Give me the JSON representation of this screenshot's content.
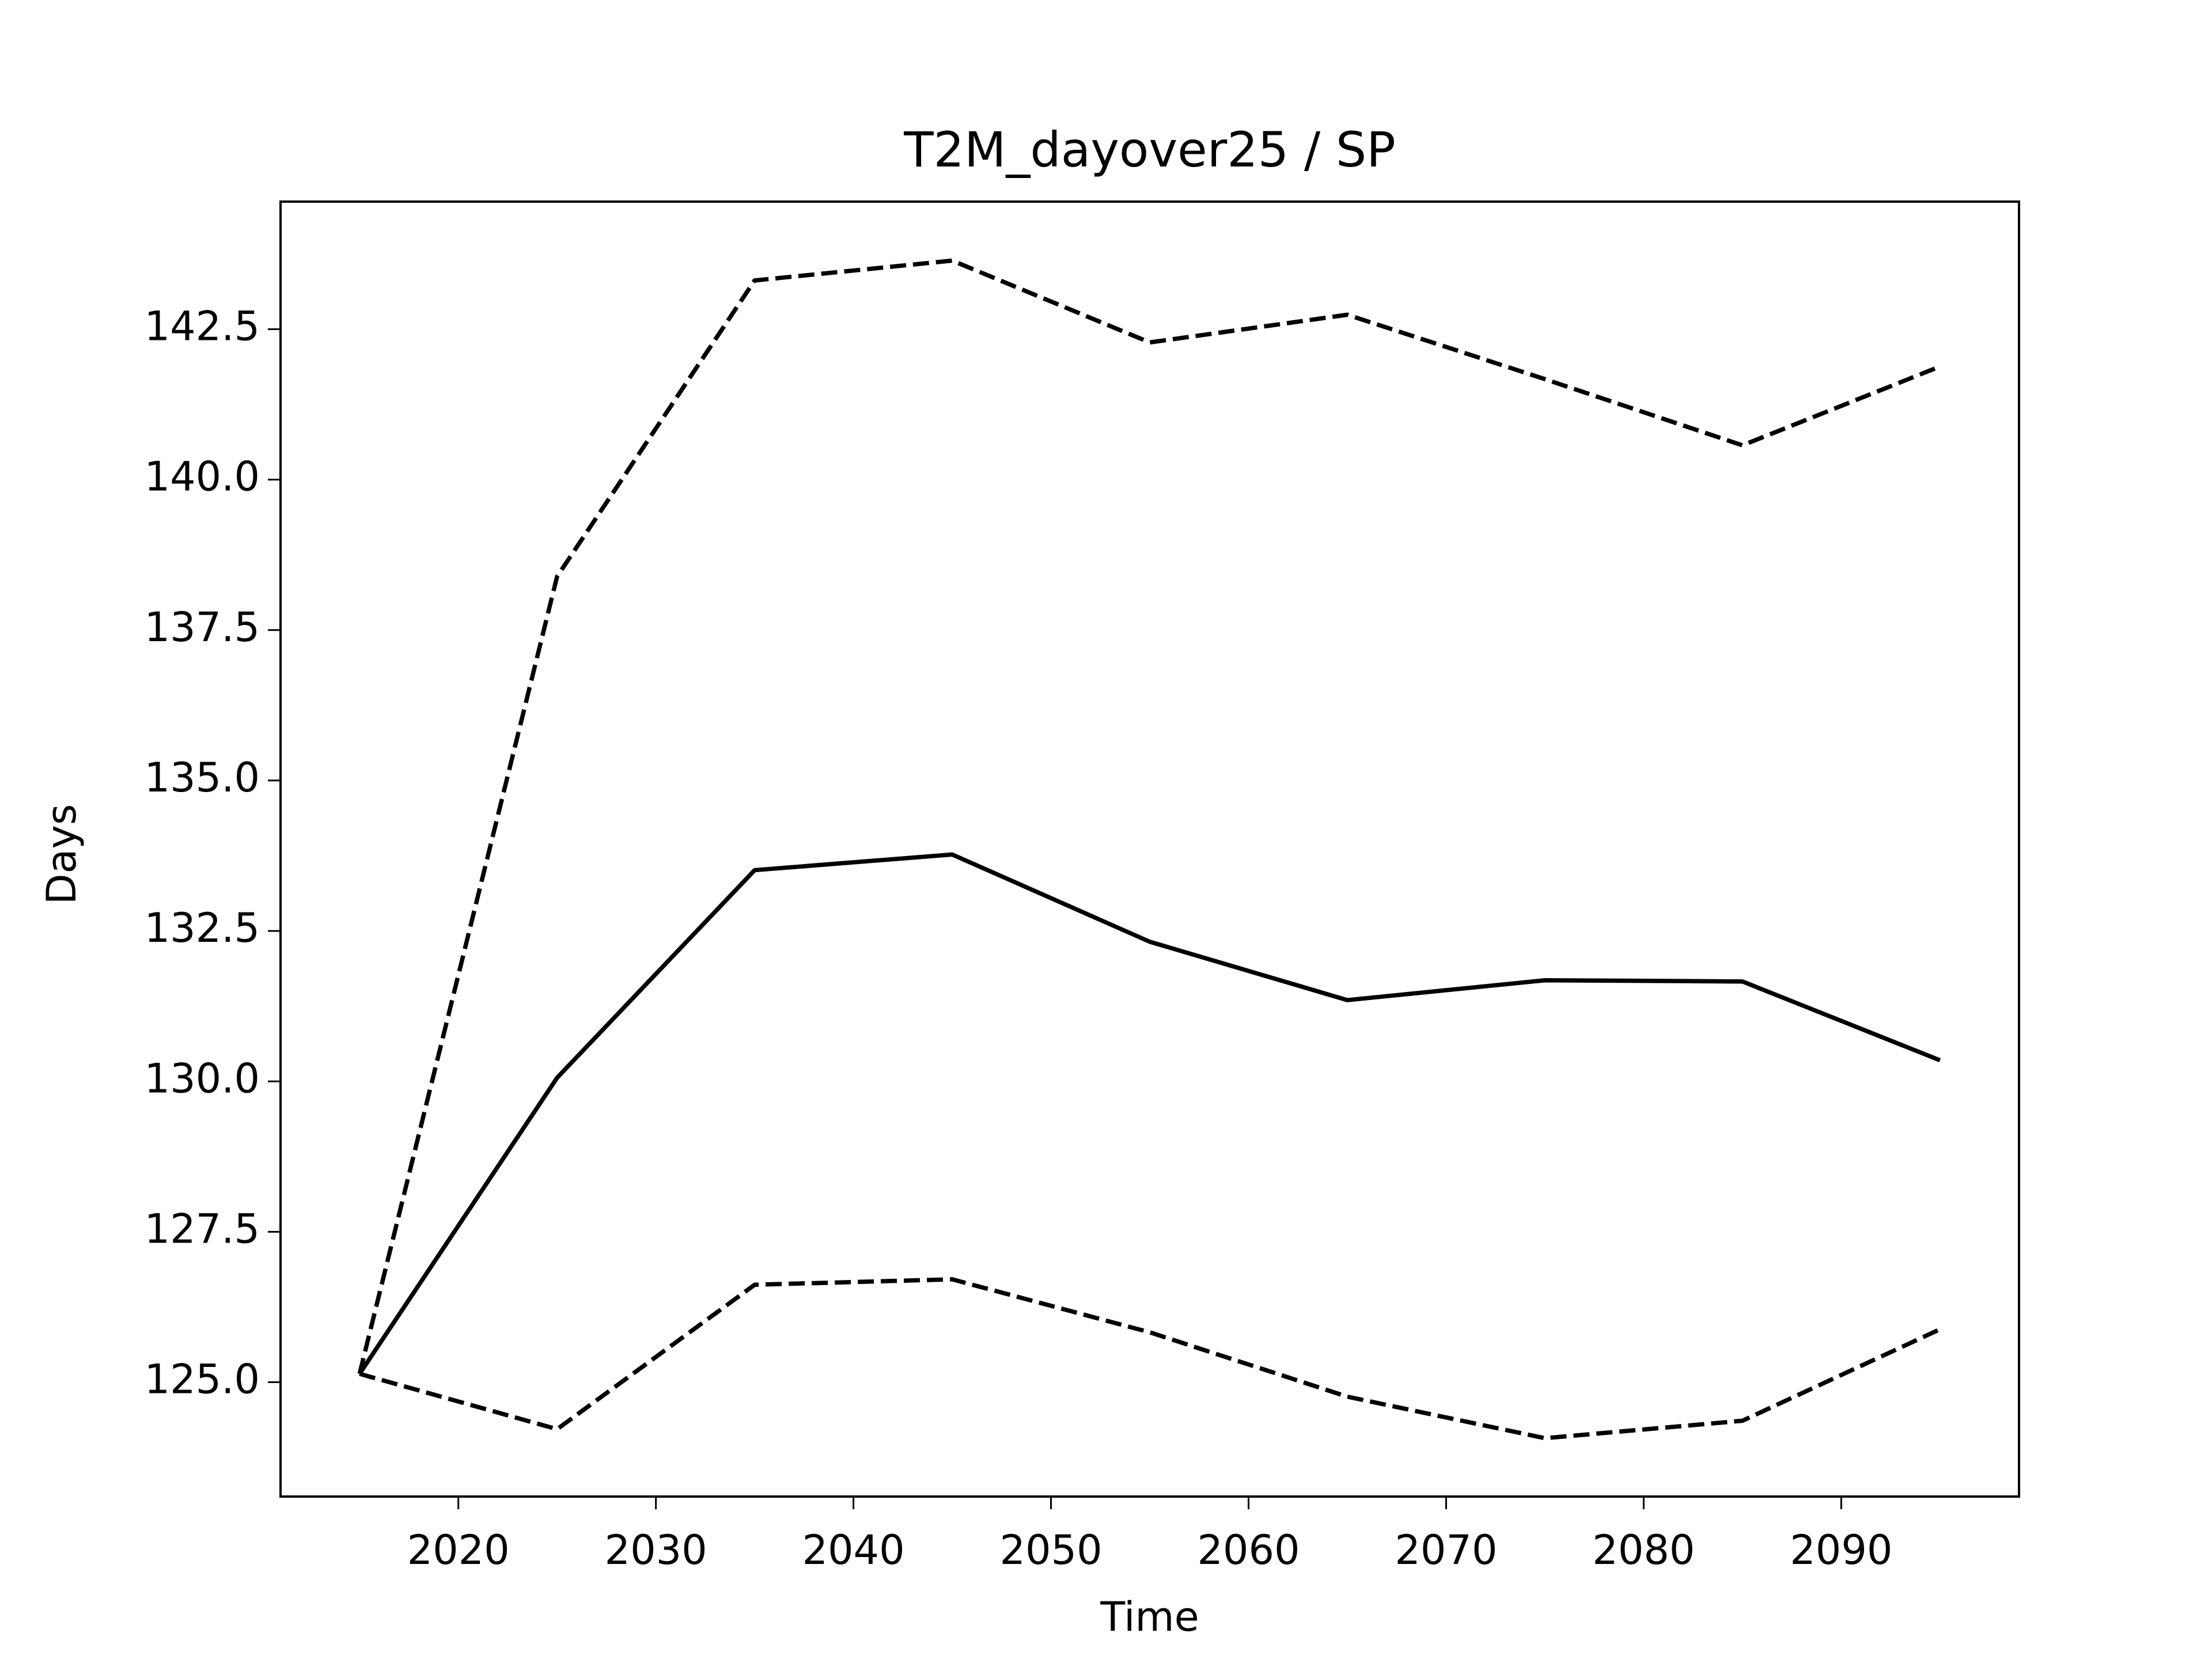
{
  "chart_data": {
    "type": "line",
    "title": "T2M_dayover25 / SP",
    "x_label": "Time",
    "y_label": "Days",
    "x": [
      2015,
      2025,
      2035,
      2045,
      2055,
      2065,
      2075,
      2085,
      2095
    ],
    "series": [
      {
        "color": "#000000",
        "linestyle": "solid",
        "values": [
          125.14,
          130.06,
          133.51,
          133.77,
          132.32,
          131.35,
          131.68,
          131.66,
          130.35
        ]
      },
      {
        "color": "#000000",
        "linestyle": "dashed",
        "values": [
          125.14,
          138.39,
          143.31,
          143.64,
          142.28,
          142.74,
          141.67,
          140.57,
          141.88
        ]
      },
      {
        "color": "#000000",
        "linestyle": "dashed",
        "values": [
          125.14,
          124.22,
          126.62,
          126.71,
          125.83,
          124.76,
          124.07,
          124.36,
          125.88
        ]
      }
    ],
    "xlim": [
      2011,
      2099
    ],
    "xticks": [
      2020,
      2030,
      2040,
      2050,
      2060,
      2070,
      2080,
      2090
    ],
    "ylim": [
      123.1,
      144.62
    ],
    "yticks": [
      {
        "value": 125,
        "label": "125.0"
      },
      127.5,
      {
        "value": 130,
        "label": "130.0"
      },
      132.5,
      {
        "value": 135,
        "label": "135.0"
      },
      137.5,
      {
        "value": 140,
        "label": "140.0"
      },
      142.5
    ],
    "grid": false
  }
}
